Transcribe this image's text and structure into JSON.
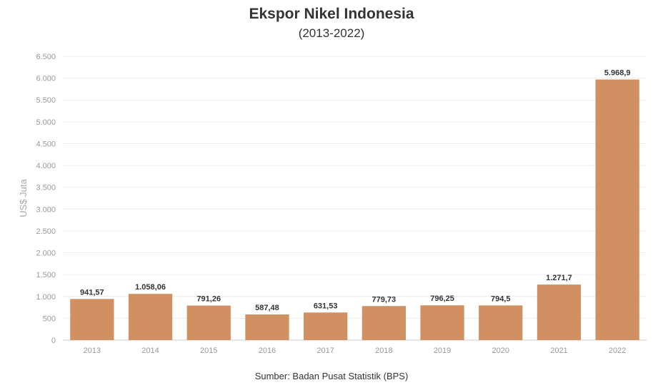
{
  "chart_data": {
    "type": "bar",
    "title": "Ekspor Nikel Indonesia",
    "subtitle": "(2013-2022)",
    "ylabel": "US$ Juta",
    "xlabel": "",
    "source": "Sumber: Badan Pusat Statistik (BPS)",
    "categories": [
      "2013",
      "2014",
      "2015",
      "2016",
      "2017",
      "2018",
      "2019",
      "2020",
      "2021",
      "2022"
    ],
    "values": [
      941.57,
      1058.06,
      791.26,
      587.48,
      631.53,
      779.73,
      796.25,
      794.5,
      1271.7,
      5968.9
    ],
    "value_labels": [
      "941,57",
      "1.058,06",
      "791,26",
      "587,48",
      "631,53",
      "779,73",
      "796,25",
      "794,5",
      "1.271,7",
      "5.968,9"
    ],
    "ylim": [
      0,
      6500
    ],
    "yticks": [
      0,
      500,
      1000,
      1500,
      2000,
      2500,
      3000,
      3500,
      4000,
      4500,
      5000,
      5500,
      6000,
      6500
    ],
    "ytick_labels": [
      "0",
      "500",
      "1.000",
      "1.500",
      "2.000",
      "2.500",
      "3.000",
      "3.500",
      "4.000",
      "4.500",
      "5.000",
      "5.500",
      "6.000",
      "6.500"
    ],
    "grid": true,
    "legend": "none",
    "bar_color": "#d19061"
  }
}
